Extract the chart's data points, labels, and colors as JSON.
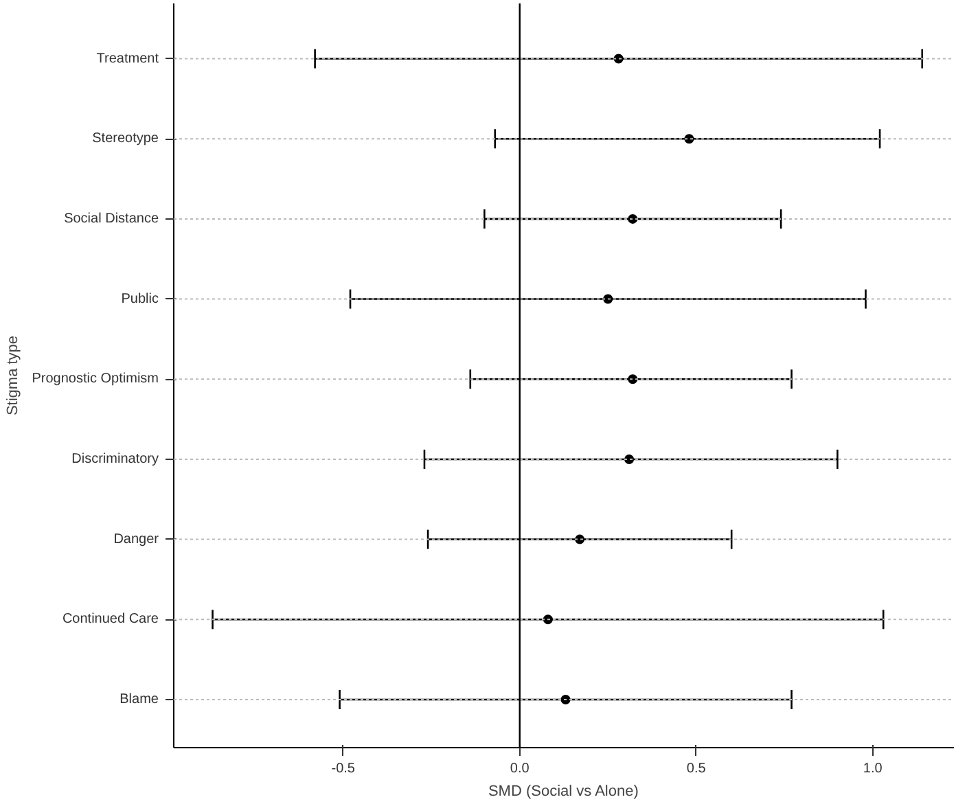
{
  "chart_data": {
    "type": "scatter",
    "orientation": "horizontal",
    "xlabel": "SMD (Social vs Alone)",
    "ylabel": "Stigma type",
    "categories": [
      "Treatment",
      "Stereotype",
      "Social Distance",
      "Public",
      "Prognostic Optimism",
      "Discriminatory",
      "Danger",
      "Continued Care",
      "Blame"
    ],
    "values": [
      0.28,
      0.48,
      0.32,
      0.25,
      0.32,
      0.31,
      0.17,
      0.08,
      0.13
    ],
    "errors": [
      [
        -0.58,
        1.14
      ],
      [
        -0.07,
        1.02
      ],
      [
        -0.1,
        0.74
      ],
      [
        -0.48,
        0.98
      ],
      [
        -0.14,
        0.77
      ],
      [
        -0.27,
        0.9
      ],
      [
        -0.26,
        0.6
      ],
      [
        -0.87,
        1.03
      ],
      [
        -0.51,
        0.77
      ]
    ],
    "color": "#000000",
    "marker": "circle",
    "xlim": [
      -0.98,
      1.23
    ],
    "xticks": [
      {
        "value": -0.5,
        "label": "-0.5"
      },
      {
        "value": 0,
        "label": "0.0"
      },
      {
        "value": 0.5,
        "label": "0.5"
      },
      {
        "value": 1,
        "label": "1.0"
      }
    ],
    "ref_lines": [
      {
        "axis": "x",
        "value": 0,
        "color": "#000000"
      }
    ],
    "grid": "y",
    "legend": false
  }
}
